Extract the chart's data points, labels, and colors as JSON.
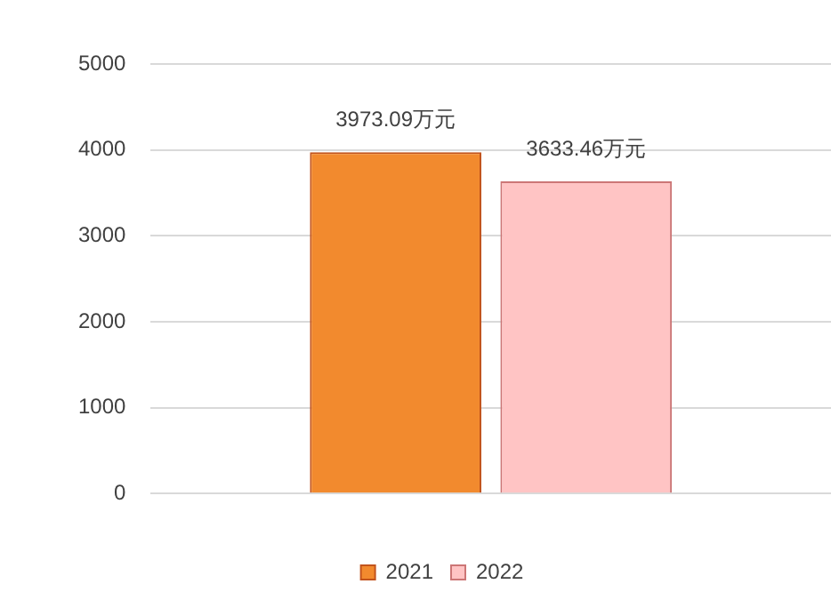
{
  "chart_data": {
    "type": "bar",
    "categories": [
      null
    ],
    "series": [
      {
        "name": "2021",
        "color": "#f28a2e",
        "values": [
          3973.09
        ],
        "value_labels": [
          "3973.09万元"
        ]
      },
      {
        "name": "2022",
        "color": "#ffc4c4",
        "values": [
          3633.46
        ],
        "value_labels": [
          "3633.46万元"
        ]
      }
    ],
    "ylim": [
      0,
      5000
    ],
    "yticks": [
      0,
      1000,
      2000,
      3000,
      4000,
      5000
    ],
    "grid": "y",
    "legend": "bottom"
  }
}
